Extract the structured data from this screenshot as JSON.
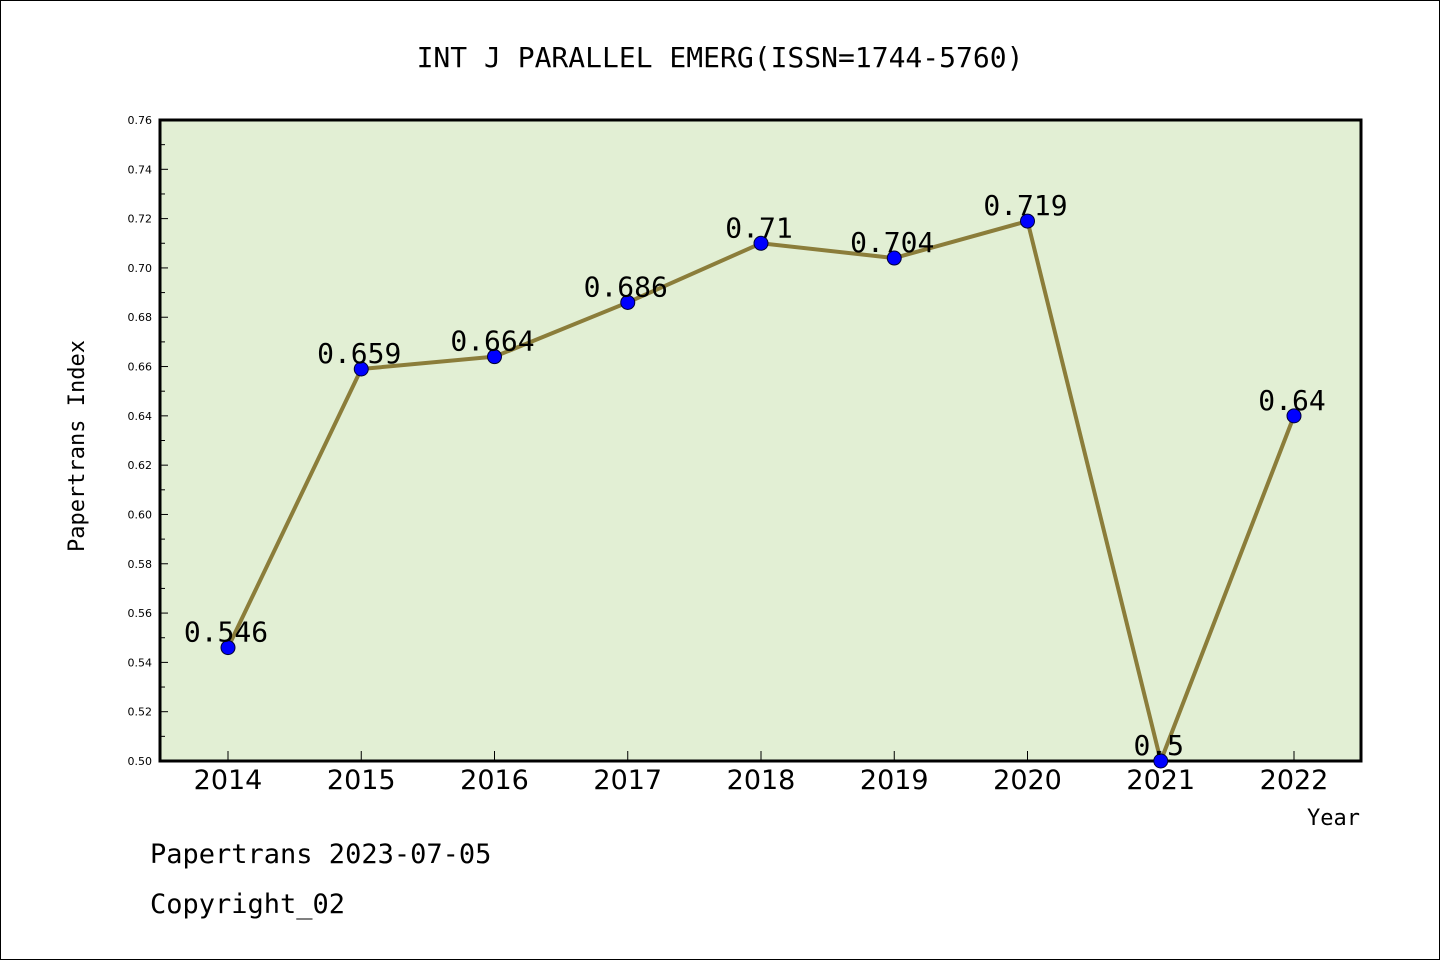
{
  "chart_data": {
    "type": "line",
    "title": "INT J PARALLEL EMERG(ISSN=1744-5760)",
    "xlabel": "Year",
    "ylabel": "Papertrans Index",
    "categories": [
      "2014",
      "2015",
      "2016",
      "2017",
      "2018",
      "2019",
      "2020",
      "2021",
      "2022"
    ],
    "values": [
      0.546,
      0.659,
      0.664,
      0.686,
      0.71,
      0.704,
      0.719,
      0.5,
      0.64
    ],
    "data_labels": [
      "0.546",
      "0.659",
      "0.664",
      "0.686",
      "0.71",
      "0.704",
      "0.719",
      "0.5",
      "0.64"
    ],
    "ylim": [
      0.5,
      0.76
    ],
    "yticks": [
      "0.50",
      "0.52",
      "0.54",
      "0.56",
      "0.58",
      "0.60",
      "0.62",
      "0.64",
      "0.66",
      "0.68",
      "0.70",
      "0.72",
      "0.74",
      "0.76"
    ],
    "grid": false,
    "colors": {
      "line": "#8B7D3A",
      "marker": "#0000FF",
      "plot_background": "#E2EFD4",
      "axes": "#000000"
    }
  },
  "footer": {
    "line1": "Papertrans 2023-07-05",
    "line2": "Copyright_02"
  }
}
